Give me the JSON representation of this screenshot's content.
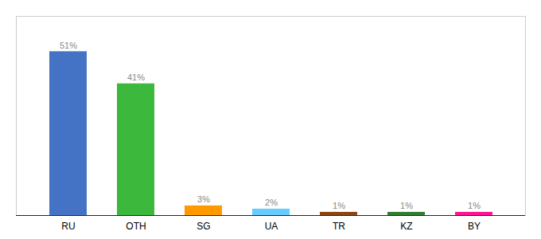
{
  "chart_data": {
    "type": "bar",
    "categories": [
      "RU",
      "OTH",
      "SG",
      "UA",
      "TR",
      "KZ",
      "BY"
    ],
    "values": [
      51,
      41,
      3,
      2,
      1,
      1,
      1
    ],
    "value_labels": [
      "51%",
      "41%",
      "3%",
      "2%",
      "1%",
      "1%",
      "1%"
    ],
    "colors": [
      "#4472C4",
      "#3CB93C",
      "#FF9900",
      "#66CCFF",
      "#8B4513",
      "#2E7D32",
      "#FF1493"
    ],
    "ylim": [
      0,
      62
    ],
    "data_labels": true,
    "tick_labels": "x",
    "grid": false
  }
}
